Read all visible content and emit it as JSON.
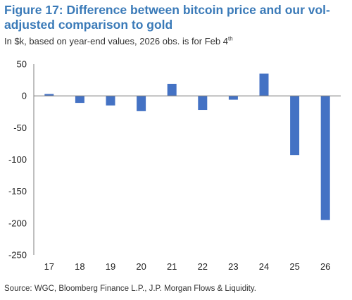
{
  "figure": {
    "title": "Figure 17: Difference between bitcoin price and our vol-adjusted comparison to gold",
    "subtitle_main": "In $k, based on year-end values, 2026 obs. is for Feb 4",
    "subtitle_sup": "th",
    "source": "Source: WGC, Bloomberg Finance L.P., J.P. Morgan Flows & Liquidity."
  },
  "chart_data": {
    "type": "bar",
    "categories": [
      "17",
      "18",
      "19",
      "20",
      "21",
      "22",
      "23",
      "24",
      "25",
      "26"
    ],
    "values": [
      3,
      -11,
      -15,
      -24,
      19,
      -22,
      -6,
      35,
      -93,
      -195
    ],
    "ylim": [
      -250,
      50
    ],
    "yticks": [
      50,
      0,
      -50,
      -100,
      -150,
      -200,
      -250
    ],
    "grid": false,
    "bar_color": "#4472c4"
  }
}
